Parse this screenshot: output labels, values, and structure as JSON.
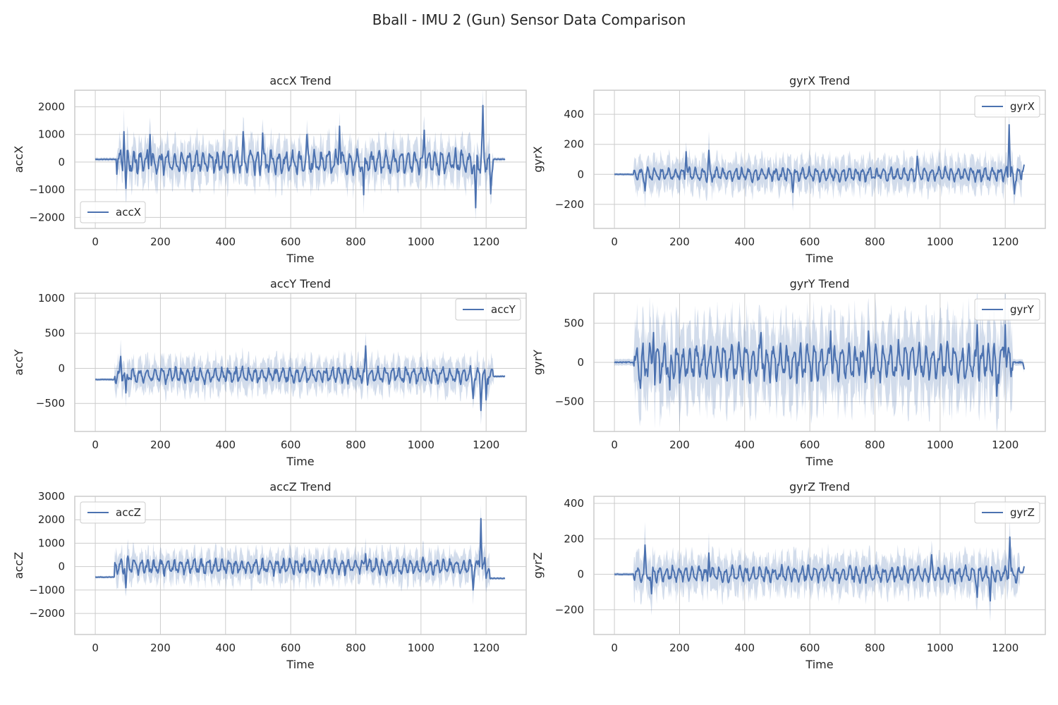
{
  "figure": {
    "title": "Bball - IMU 2 (Gun) Sensor Data Comparison"
  },
  "style": {
    "line_color": "#4c72b0",
    "band_color": "#4c72b0",
    "band_opacity": 0.25,
    "grid_color": "#cccccc",
    "axes_edge_color": "#cccccc",
    "background": "#ffffff"
  },
  "chart_data": [
    {
      "type": "line",
      "title": "accX Trend",
      "xlabel": "Time",
      "ylabel": "accX",
      "legend": "accX",
      "legend_loc": "bottom-left",
      "xlim": [
        -63,
        1323
      ],
      "ylim": [
        -2400,
        2600
      ],
      "xticks": [
        0,
        200,
        400,
        600,
        800,
        1000,
        1200
      ],
      "yticks": [
        -2000,
        -1000,
        0,
        1000,
        2000
      ],
      "ytick_labels": [
        "−2000",
        "−1000",
        "0",
        "1000",
        "2000"
      ],
      "x_extent": [
        0,
        1258
      ],
      "flat_until": 65,
      "flat_value": 100,
      "flat_after": 1220,
      "flat_after_value": 100,
      "mean_amplitude": 420,
      "band_amplitude": 750,
      "peaks": [
        [
          88,
          1100
        ],
        [
          95,
          -950
        ],
        [
          168,
          1000
        ],
        [
          455,
          1100
        ],
        [
          515,
          1050
        ],
        [
          650,
          1000
        ],
        [
          750,
          1300
        ],
        [
          825,
          -1180
        ],
        [
          1010,
          1150
        ],
        [
          1168,
          -1650
        ],
        [
          1190,
          2050
        ],
        [
          1215,
          -1150
        ]
      ]
    },
    {
      "type": "line",
      "title": "gyrX Trend",
      "xlabel": "Time",
      "ylabel": "gyrX",
      "legend": "gyrX",
      "legend_loc": "top-right",
      "xlim": [
        -63,
        1323
      ],
      "ylim": [
        -360,
        560
      ],
      "xticks": [
        0,
        200,
        400,
        600,
        800,
        1000,
        1200
      ],
      "yticks": [
        -200,
        0,
        200,
        400
      ],
      "ytick_labels": [
        "−200",
        "0",
        "200",
        "400"
      ],
      "x_extent": [
        0,
        1258
      ],
      "flat_until": 60,
      "flat_value": 0,
      "flat_after": 1250,
      "flat_after_value": 20,
      "mean_amplitude": 45,
      "band_amplitude": 110,
      "peaks": [
        [
          95,
          -110
        ],
        [
          220,
          150
        ],
        [
          290,
          160
        ],
        [
          548,
          -120
        ],
        [
          930,
          120
        ],
        [
          1212,
          330
        ],
        [
          1228,
          -130
        ],
        [
          1258,
          65
        ]
      ]
    },
    {
      "type": "line",
      "title": "accY Trend",
      "xlabel": "Time",
      "ylabel": "accY",
      "legend": "accY",
      "legend_loc": "top-right",
      "xlim": [
        -63,
        1323
      ],
      "ylim": [
        -900,
        1070
      ],
      "xticks": [
        0,
        200,
        400,
        600,
        800,
        1000,
        1200
      ],
      "yticks": [
        -500,
        0,
        500,
        1000
      ],
      "ytick_labels": [
        "−500",
        "0",
        "500",
        "1000"
      ],
      "x_extent": [
        0,
        1258
      ],
      "flat_until": 60,
      "flat_value": -160,
      "flat_after": 1222,
      "flat_after_value": -115,
      "mean_amplitude": 110,
      "band_amplitude": 230,
      "mean_offset": -100,
      "peaks": [
        [
          78,
          170
        ],
        [
          95,
          -350
        ],
        [
          830,
          320
        ],
        [
          1160,
          -430
        ],
        [
          1185,
          -600
        ],
        [
          1200,
          -450
        ]
      ]
    },
    {
      "type": "line",
      "title": "gyrY Trend",
      "xlabel": "Time",
      "ylabel": "gyrY",
      "legend": "gyrY",
      "legend_loc": "top-right",
      "xlim": [
        -63,
        1323
      ],
      "ylim": [
        -880,
        880
      ],
      "xticks": [
        0,
        200,
        400,
        600,
        800,
        1000,
        1200
      ],
      "yticks": [
        -500,
        0,
        500
      ],
      "ytick_labels": [
        "−500",
        "0",
        "500"
      ],
      "x_extent": [
        0,
        1258
      ],
      "flat_until": 60,
      "flat_value": 0,
      "flat_after": 1222,
      "flat_after_value": 0,
      "mean_amplitude": 230,
      "band_amplitude": 500,
      "peaks": [
        [
          80,
          -330
        ],
        [
          120,
          380
        ],
        [
          170,
          -350
        ],
        [
          450,
          380
        ],
        [
          665,
          400
        ],
        [
          780,
          400
        ],
        [
          1115,
          480
        ],
        [
          1175,
          -430
        ],
        [
          1200,
          480
        ],
        [
          1258,
          -90
        ]
      ]
    },
    {
      "type": "line",
      "title": "accZ Trend",
      "xlabel": "Time",
      "ylabel": "accZ",
      "legend": "accZ",
      "legend_loc": "top-left",
      "xlim": [
        -63,
        1323
      ],
      "ylim": [
        -2900,
        3000
      ],
      "xticks": [
        0,
        200,
        400,
        600,
        800,
        1000,
        1200
      ],
      "yticks": [
        -2000,
        -1000,
        0,
        1000,
        2000,
        3000
      ],
      "ytick_labels": [
        "−2000",
        "−1000",
        "0",
        "1000",
        "2000",
        "3000"
      ],
      "x_extent": [
        0,
        1258
      ],
      "flat_until": 60,
      "flat_value": -450,
      "flat_after": 1210,
      "flat_after_value": -500,
      "mean_amplitude": 330,
      "band_amplitude": 650,
      "peaks": [
        [
          95,
          -900
        ],
        [
          100,
          450
        ],
        [
          830,
          550
        ],
        [
          1160,
          -1000
        ],
        [
          1185,
          2050
        ],
        [
          1200,
          -500
        ]
      ]
    },
    {
      "type": "line",
      "title": "gyrZ Trend",
      "xlabel": "Time",
      "ylabel": "gyrZ",
      "legend": "gyrZ",
      "legend_loc": "top-right",
      "xlim": [
        -63,
        1323
      ],
      "ylim": [
        -340,
        440
      ],
      "xticks": [
        0,
        200,
        400,
        600,
        800,
        1000,
        1200
      ],
      "yticks": [
        -200,
        0,
        200,
        400
      ],
      "ytick_labels": [
        "−200",
        "0",
        "200",
        "400"
      ],
      "x_extent": [
        0,
        1258
      ],
      "flat_until": 60,
      "flat_value": 0,
      "flat_after": 1245,
      "flat_after_value": 10,
      "mean_amplitude": 45,
      "band_amplitude": 110,
      "peaks": [
        [
          95,
          165
        ],
        [
          115,
          -110
        ],
        [
          290,
          120
        ],
        [
          975,
          110
        ],
        [
          1115,
          -130
        ],
        [
          1155,
          -150
        ],
        [
          1215,
          210
        ],
        [
          1258,
          45
        ]
      ]
    }
  ]
}
